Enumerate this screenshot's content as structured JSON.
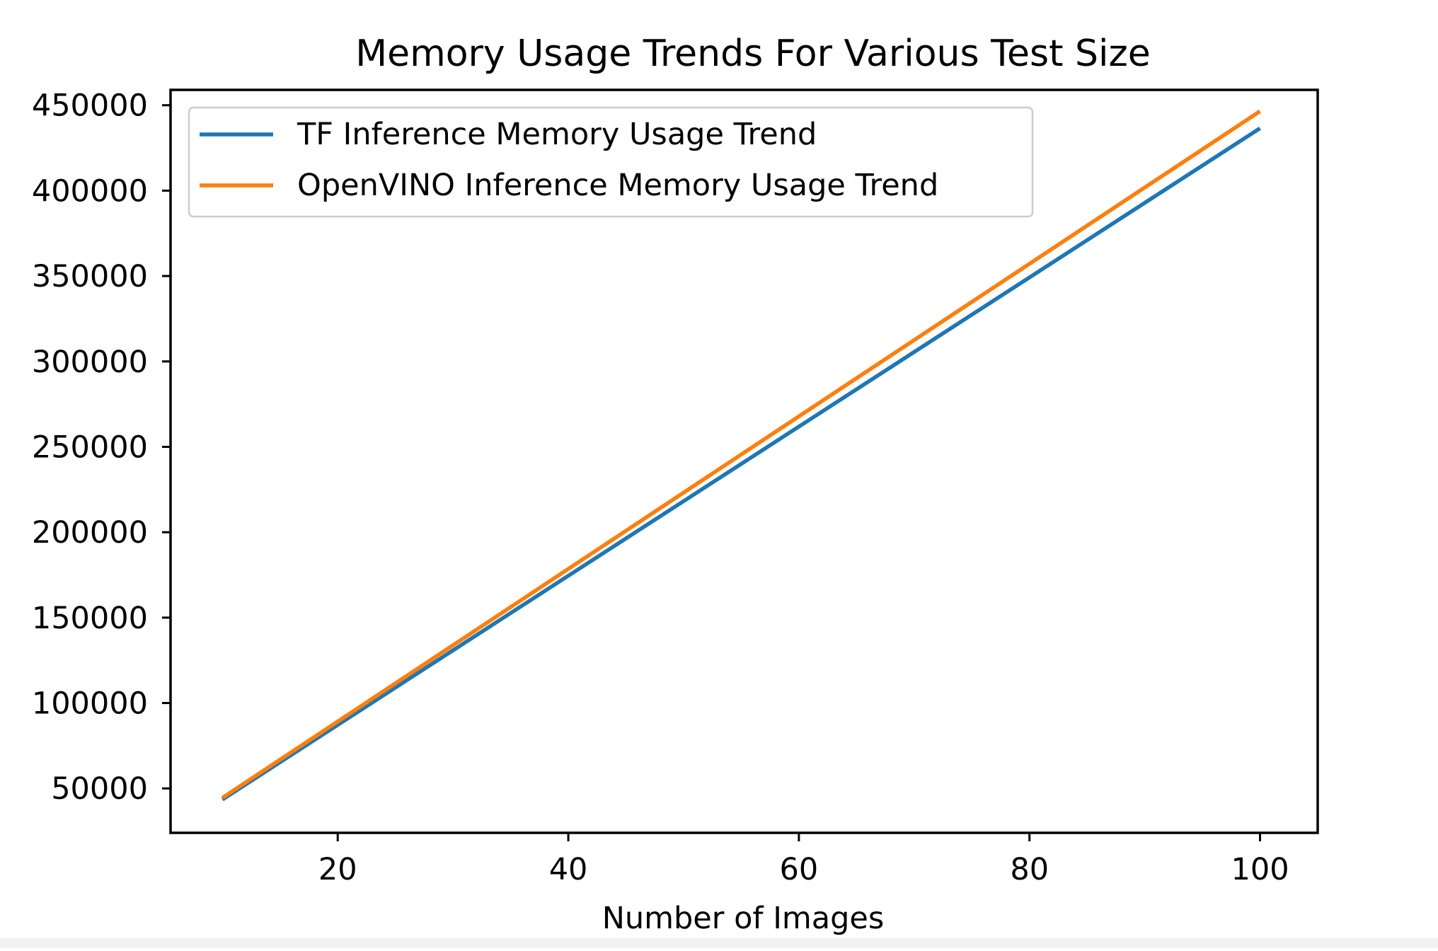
{
  "chart_data": {
    "type": "line",
    "title": "Memory Usage Trends For Various Test Size",
    "xlabel": "Number of Images",
    "ylabel": "",
    "xlim": [
      5.5,
      105
    ],
    "ylim": [
      24000,
      459000
    ],
    "x_ticks": [
      20,
      40,
      60,
      80,
      100
    ],
    "y_ticks": [
      50000,
      100000,
      150000,
      200000,
      250000,
      300000,
      350000,
      400000,
      450000
    ],
    "x_tick_labels": [
      "20",
      "40",
      "60",
      "80",
      "100"
    ],
    "y_tick_labels": [
      "50000",
      "100000",
      "150000",
      "200000",
      "250000",
      "300000",
      "350000",
      "400000",
      "450000"
    ],
    "grid": false,
    "legend_position": "top-left",
    "series": [
      {
        "name": "TF Inference Memory Usage Trend",
        "color": "#1f77b4",
        "x": [
          10,
          100
        ],
        "y": [
          43500,
          436500
        ]
      },
      {
        "name": "OpenVINO Inference Memory Usage Trend",
        "color": "#ff7f0e",
        "x": [
          10,
          100
        ],
        "y": [
          44500,
          446500
        ]
      }
    ]
  }
}
